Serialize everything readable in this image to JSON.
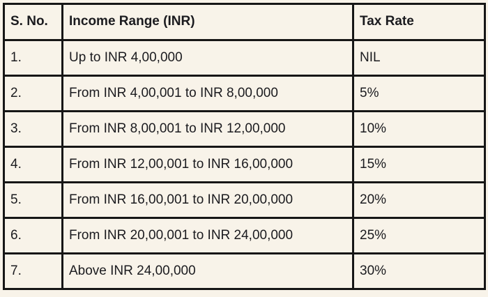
{
  "table": {
    "columns": [
      {
        "key": "sno",
        "label": "S. No."
      },
      {
        "key": "range",
        "label": "Income Range (INR)"
      },
      {
        "key": "rate",
        "label": "Tax Rate"
      }
    ],
    "rows": [
      {
        "sno": "1.",
        "range": "Up to INR 4,00,000",
        "rate": "NIL"
      },
      {
        "sno": "2.",
        "range": "From INR 4,00,001 to INR 8,00,000",
        "rate": "5%"
      },
      {
        "sno": "3.",
        "range": "From INR 8,00,001 to INR 12,00,000",
        "rate": "10%"
      },
      {
        "sno": "4.",
        "range": "From INR 12,00,001 to INR 16,00,000",
        "rate": "15%"
      },
      {
        "sno": "5.",
        "range": "From INR 16,00,001 to INR 20,00,000",
        "rate": "20%"
      },
      {
        "sno": "6.",
        "range": "From INR 20,00,001 to INR 24,00,000",
        "rate": "25%"
      },
      {
        "sno": "7.",
        "range": "Above INR 24,00,000",
        "rate": "30%"
      }
    ],
    "colors": {
      "background": "#f8f3e9",
      "border": "#161616",
      "text": "#1b1b1f"
    }
  }
}
